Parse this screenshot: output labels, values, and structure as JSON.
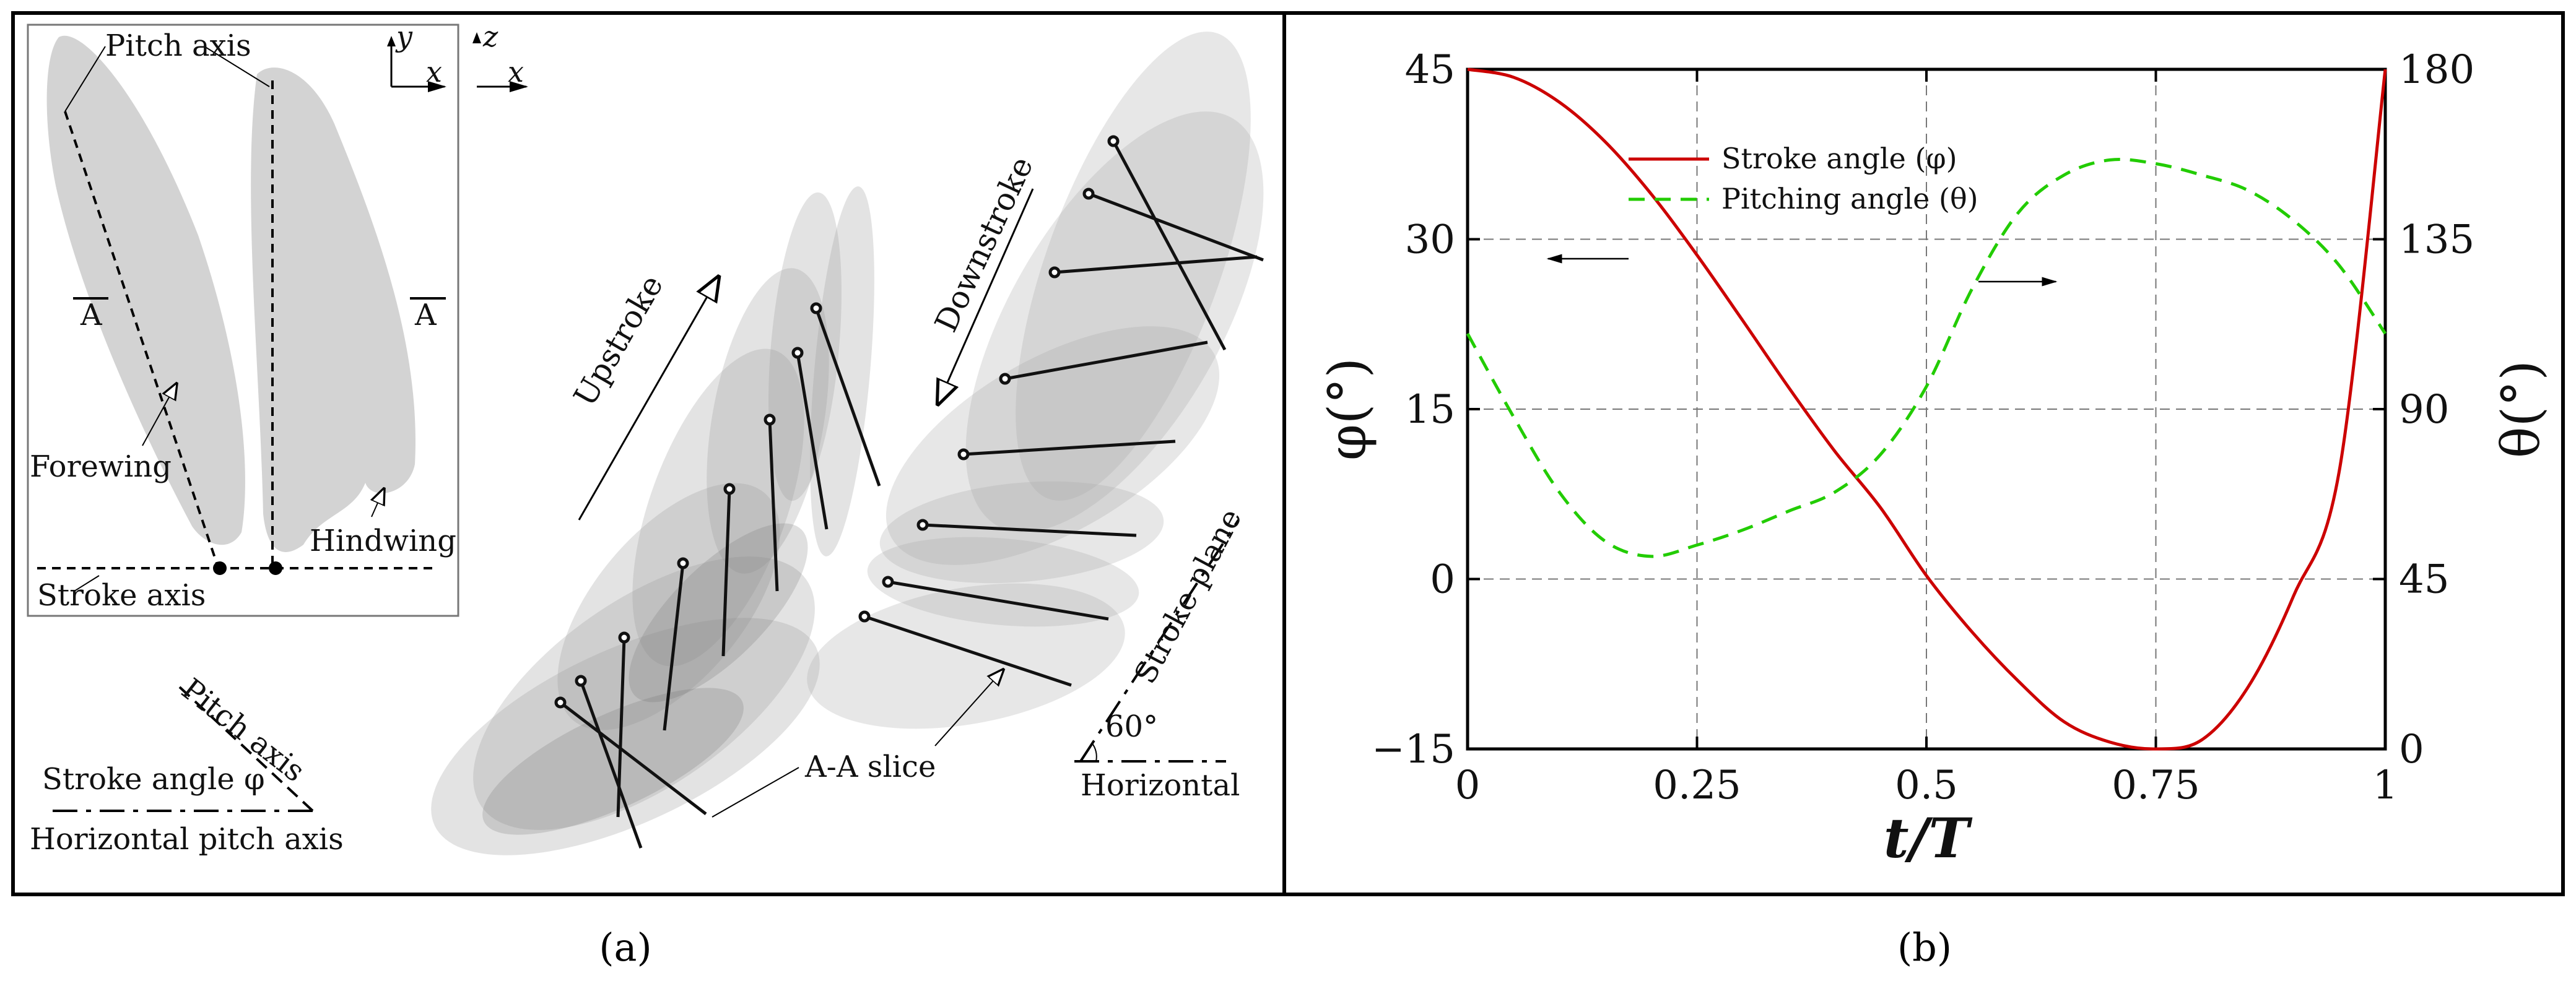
{
  "panel_a": {
    "labels": {
      "pitch_axis_top": "Pitch axis",
      "y": "y",
      "x1": "x",
      "z": "z",
      "x2": "x",
      "a_left": "A",
      "a_right": "A",
      "forewing": "Forewing",
      "hindwing": "Hindwing",
      "stroke_axis": "Stroke axis",
      "upstroke": "Upstroke",
      "downstroke": "Downstroke",
      "stroke_plane": "Stroke plane",
      "angle_60": "60°",
      "horizontal": "Horizontal",
      "aa_slice": "A-A slice",
      "pitch_axis_bottom": "Pitch axis",
      "stroke_angle": "Stroke angle φ",
      "horizontal_pitch_axis": "Horizontal pitch axis"
    },
    "caption": "(a)"
  },
  "panel_b": {
    "caption": "(b)",
    "legend": {
      "stroke": "Stroke angle (φ)",
      "pitching": "Pitching angle (θ)"
    },
    "colors": {
      "stroke": "#cc0000",
      "pitching": "#22cc00"
    }
  },
  "chart_data": {
    "type": "line",
    "xlabel": "t/T",
    "ylabel_left": "φ(°)",
    "ylabel_right": "θ(°)",
    "xlim": [
      0,
      1
    ],
    "ylim_left": [
      -15,
      45
    ],
    "ylim_right": [
      0,
      180
    ],
    "x_ticks": [
      "0",
      "0.25",
      "0.5",
      "0.75",
      "1"
    ],
    "y_ticks_left": [
      "−15",
      "0",
      "15",
      "30",
      "45"
    ],
    "y_ticks_right": [
      "0",
      "45",
      "90",
      "135",
      "180"
    ],
    "grid": true,
    "series": [
      {
        "name": "Stroke angle (φ)",
        "axis": "left",
        "x": [
          0,
          0.05,
          0.1,
          0.15,
          0.2,
          0.25,
          0.3,
          0.35,
          0.4,
          0.45,
          0.5,
          0.55,
          0.6,
          0.65,
          0.7,
          0.75,
          0.8,
          0.85,
          0.9,
          0.95,
          1
        ],
        "values": [
          45,
          44.3,
          42.1,
          38.6,
          34.0,
          28.6,
          22.8,
          16.9,
          11.3,
          6.3,
          0.3,
          -4.7,
          -9.0,
          -12.6,
          -14.4,
          -15,
          -14.2,
          -9.6,
          -1.5,
          9.6,
          45
        ]
      },
      {
        "name": "Pitching angle (θ)",
        "axis": "right",
        "x": [
          0,
          0.05,
          0.1,
          0.15,
          0.2,
          0.25,
          0.3,
          0.35,
          0.4,
          0.45,
          0.5,
          0.55,
          0.6,
          0.65,
          0.7,
          0.75,
          0.8,
          0.85,
          0.9,
          0.95,
          1
        ],
        "values": [
          110,
          88,
          68,
          55,
          51,
          54,
          58,
          63,
          68,
          78,
          96,
          122,
          142,
          152,
          156,
          155,
          152,
          148,
          140,
          128,
          110
        ]
      }
    ]
  }
}
